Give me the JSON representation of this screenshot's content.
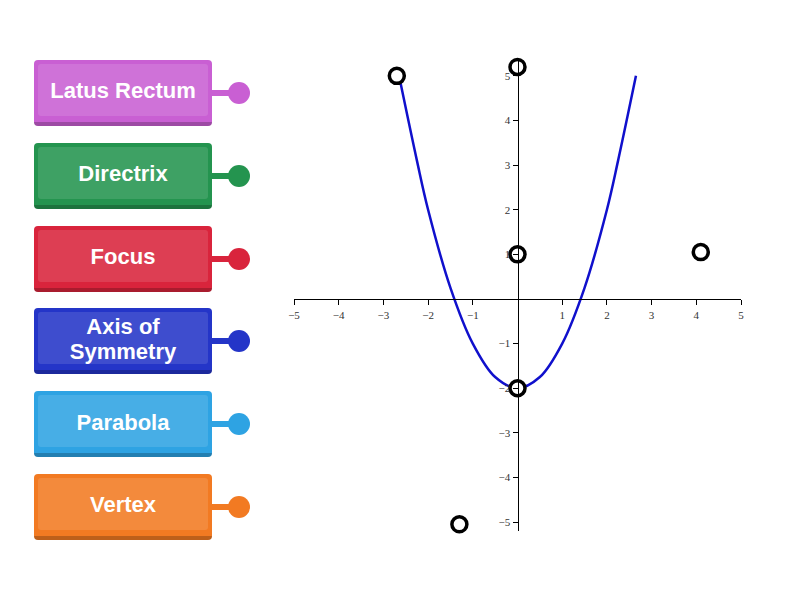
{
  "labels": [
    {
      "text": "Latus Rectum",
      "color": "#c95fd3"
    },
    {
      "text": "Directrix",
      "color": "#24944f"
    },
    {
      "text": "Focus",
      "color": "#d9243c"
    },
    {
      "text": "Axis of Symmetry",
      "color": "#2435c8"
    },
    {
      "text": "Parabola",
      "color": "#2ea3e3"
    },
    {
      "text": "Vertex",
      "color": "#f27a22"
    }
  ],
  "chart_data": {
    "type": "line",
    "xlim": [
      -5,
      5
    ],
    "ylim": [
      -5.2,
      5.4
    ],
    "xticks": [
      -5,
      -4,
      -3,
      -2,
      -1,
      1,
      2,
      3,
      4,
      5
    ],
    "yticks": [
      -5,
      -4,
      -3,
      -2,
      -1,
      1,
      2,
      3,
      4,
      5
    ],
    "grid": false,
    "series": [
      {
        "type": "line",
        "color": "#1010cc",
        "x": [
          -2.65,
          -2.25,
          -2,
          -1.5,
          -1,
          -0.5,
          0,
          0.5,
          1,
          1.5,
          2,
          2.25,
          2.65
        ],
        "values": [
          5,
          3.1,
          2,
          0.25,
          -1,
          -1.75,
          -2,
          -1.75,
          -1,
          0.25,
          2,
          3.1,
          5
        ]
      },
      {
        "type": "scatter",
        "marker": "circle",
        "color": "#000000",
        "x": [
          -2.7,
          0,
          0,
          0,
          4.1,
          -1.3
        ],
        "values": [
          5,
          5.2,
          1,
          -2,
          1.05,
          -5.05
        ]
      }
    ]
  }
}
